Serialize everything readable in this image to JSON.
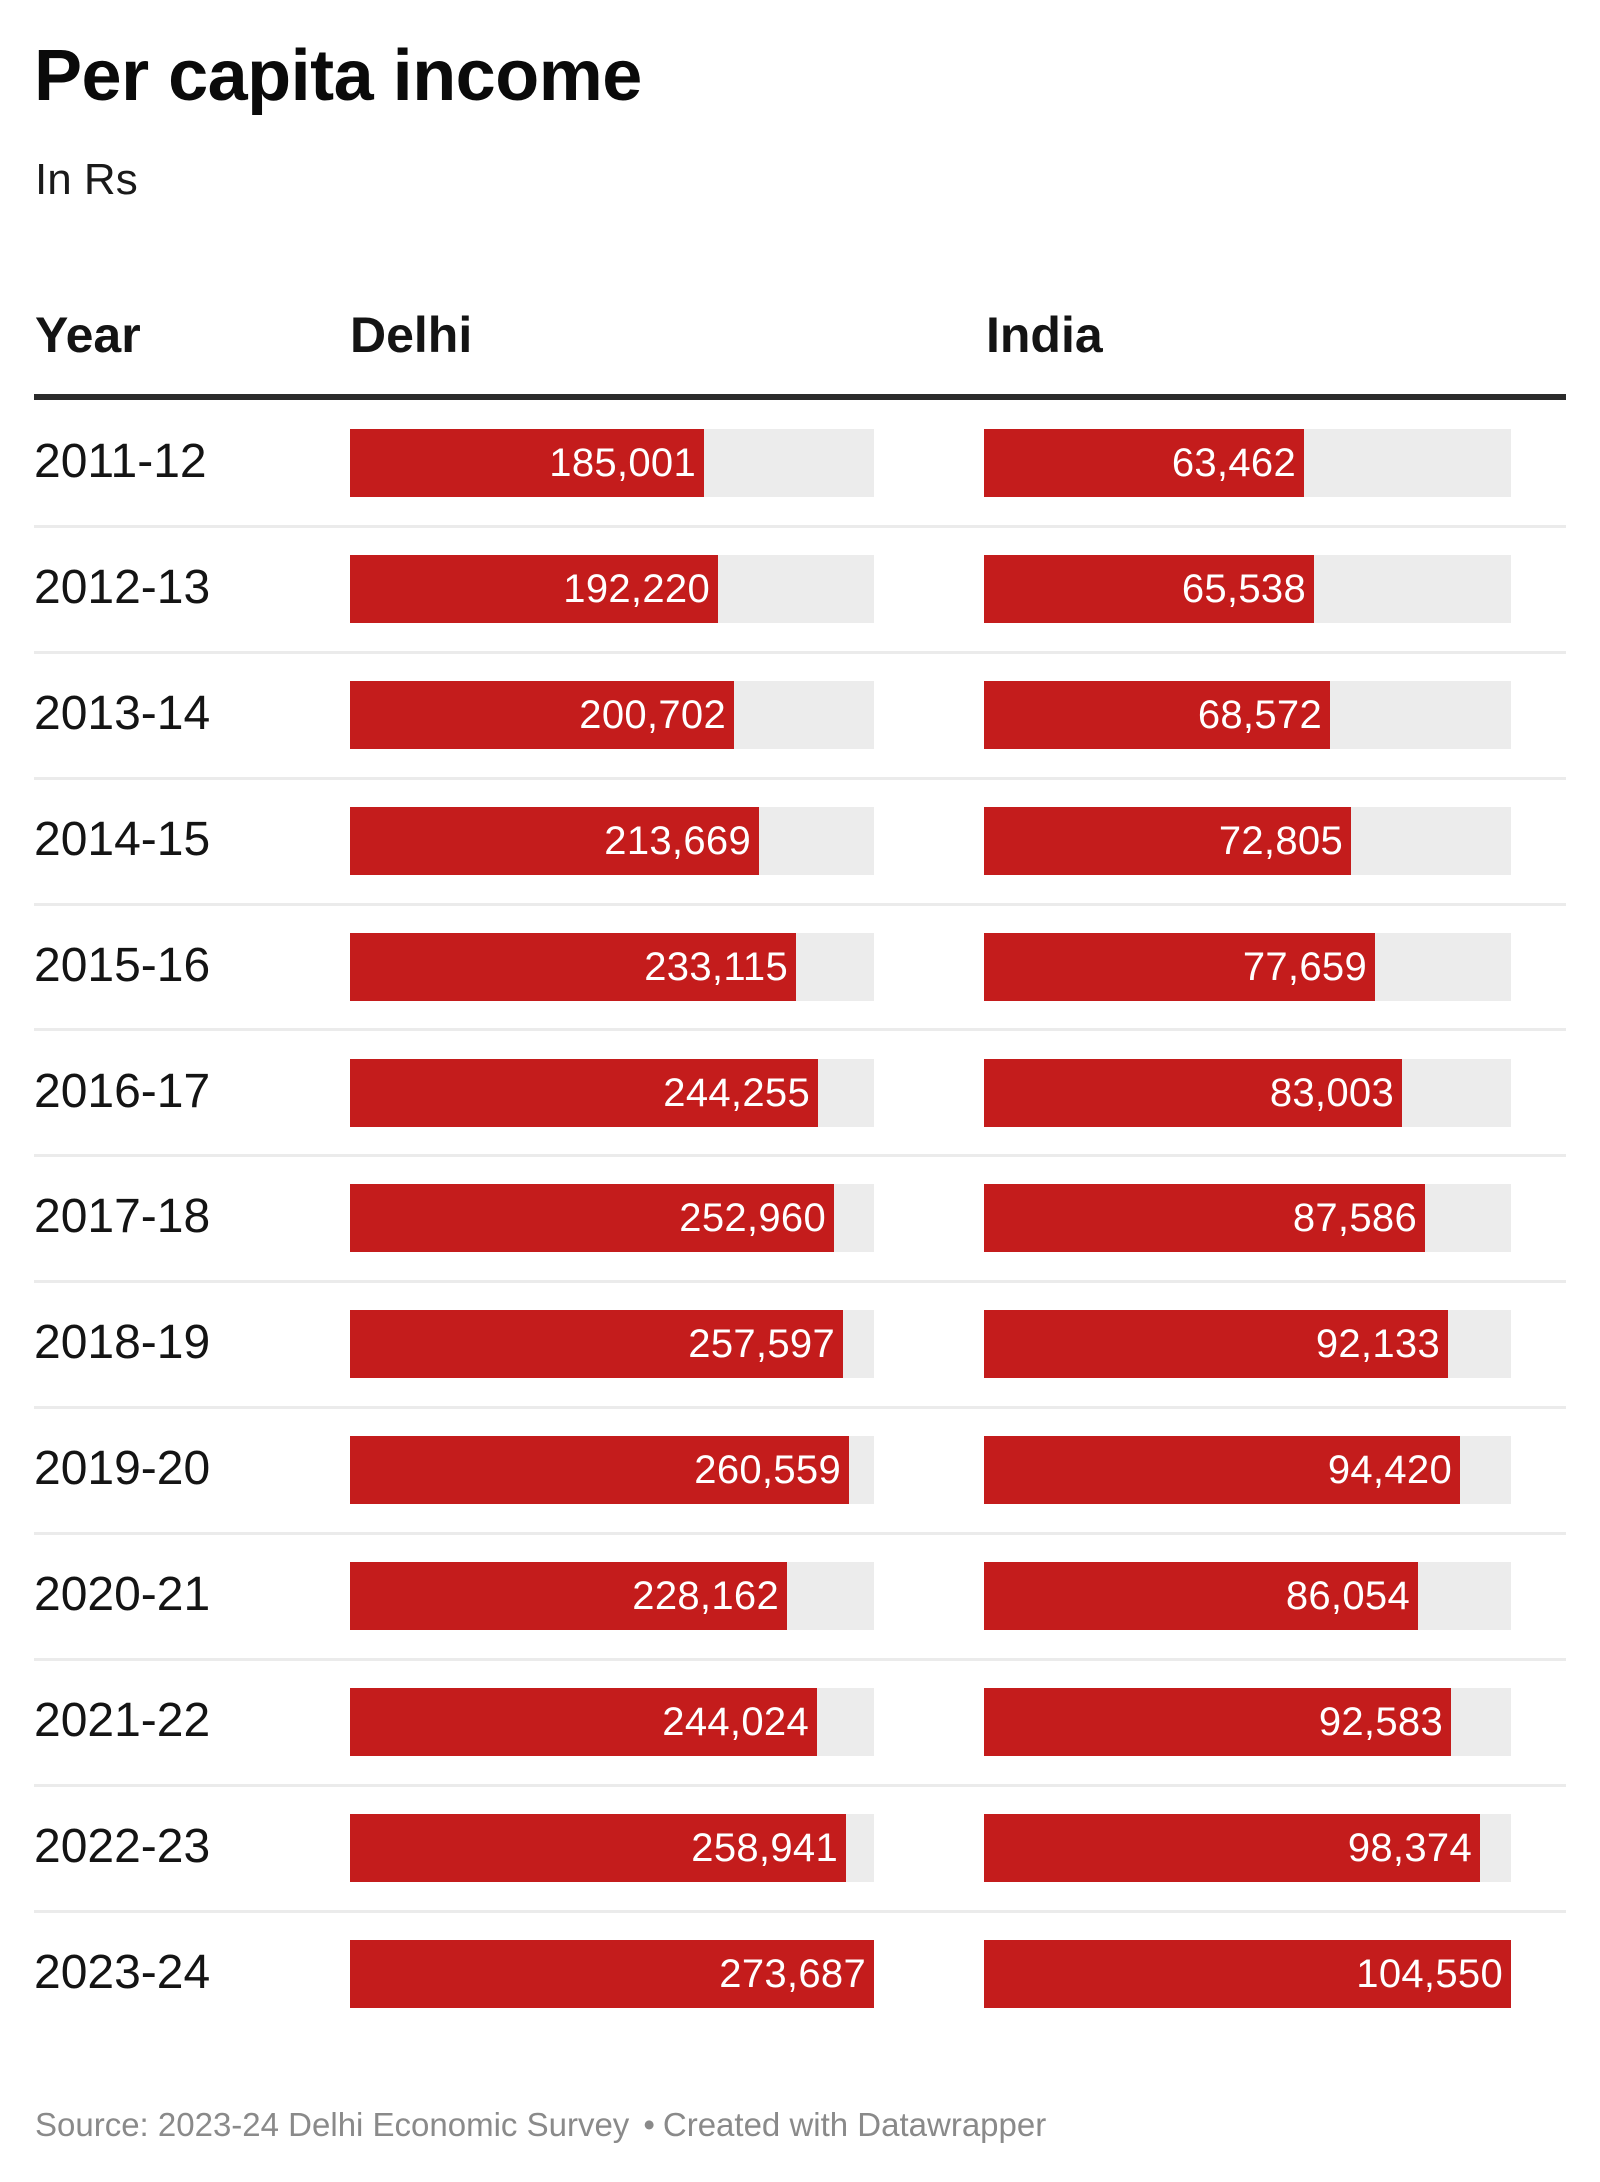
{
  "colors": {
    "bar": "#c41c1c",
    "track": "#ececec",
    "value_text": "#ffffff"
  },
  "footer": {
    "source": "Source: 2023-24 Delhi Economic Survey",
    "separator": "•",
    "credit": "Created with Datawrapper"
  },
  "chart_data": {
    "type": "table",
    "title": "Per capita income",
    "subtitle": "In Rs",
    "columns": [
      "Year",
      "Delhi",
      "India"
    ],
    "categories": [
      "2011-12",
      "2012-13",
      "2013-14",
      "2014-15",
      "2015-16",
      "2016-17",
      "2017-18",
      "2018-19",
      "2019-20",
      "2020-21",
      "2021-22",
      "2022-23",
      "2023-24"
    ],
    "series": [
      {
        "name": "Delhi",
        "values": [
          185001,
          192220,
          200702,
          213669,
          233115,
          244255,
          252960,
          257597,
          260559,
          228162,
          244024,
          258941,
          273687
        ],
        "labels": [
          "185,001",
          "192,220",
          "200,702",
          "213,669",
          "233,115",
          "244,255",
          "252,960",
          "257,597",
          "260,559",
          "228,162",
          "244,024",
          "258,941",
          "273,687"
        ],
        "max": 273687
      },
      {
        "name": "India",
        "values": [
          63462,
          65538,
          68572,
          72805,
          77659,
          83003,
          87586,
          92133,
          94420,
          86054,
          92583,
          98374,
          104550
        ],
        "labels": [
          "63,462",
          "65,538",
          "68,572",
          "72,805",
          "77,659",
          "83,003",
          "87,586",
          "92,133",
          "94,420",
          "86,054",
          "92,583",
          "98,374",
          "104,550"
        ],
        "max": 104550
      }
    ],
    "bar_scale": "each column scaled to its own maximum",
    "source": "2023-24 Delhi Economic Survey"
  }
}
